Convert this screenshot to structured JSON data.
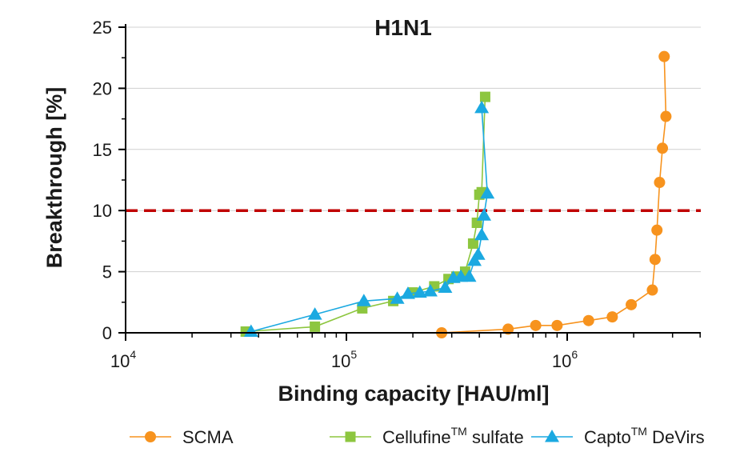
{
  "chart_data": {
    "type": "line",
    "title": "H1N1",
    "xlabel": "Binding capacity [HAU/ml]",
    "ylabel": "Breakthrough [%]",
    "x_scale": "log",
    "xlim": [
      10000,
      4500000
    ],
    "ylim": [
      0,
      25
    ],
    "x_ticks": [
      {
        "base": "10",
        "exp": "4",
        "value": 10000
      },
      {
        "base": "10",
        "exp": "5",
        "value": 100000
      },
      {
        "base": "10",
        "exp": "6",
        "value": 1000000
      }
    ],
    "y_ticks": [
      "0",
      "5",
      "10",
      "15",
      "20",
      "25"
    ],
    "grid": "horizontal",
    "legend_position": "bottom",
    "threshold": {
      "y": 10,
      "color": "#c00000",
      "style": "dashed"
    },
    "series": [
      {
        "name": "SCMA",
        "color": "#f7931e",
        "marker": "circle",
        "x": [
          270000,
          540000,
          720000,
          900000,
          1250000,
          1600000,
          1950000,
          2430000,
          2500000,
          2550000,
          2620000,
          2700000,
          2800000,
          2750000
        ],
        "y": [
          0.0,
          0.3,
          0.6,
          0.6,
          1.0,
          1.3,
          2.3,
          3.5,
          6.0,
          8.4,
          12.3,
          15.1,
          17.7,
          22.6
        ]
      },
      {
        "name": "Cellufine sulfate",
        "name_main": "Cellufine",
        "name_sup": "TM",
        "name_tail": " sulfate",
        "color": "#8dc63f",
        "marker": "square",
        "x": [
          35000,
          72000,
          118000,
          163000,
          200000,
          250000,
          290000,
          315000,
          345000,
          375000,
          390000,
          400000,
          410000,
          425000
        ],
        "y": [
          0.1,
          0.5,
          2.0,
          2.6,
          3.3,
          3.8,
          4.4,
          4.6,
          5.0,
          7.3,
          9.0,
          11.3,
          11.5,
          19.3
        ]
      },
      {
        "name": "Capto DeVirs",
        "name_main": "Capto",
        "name_sup": "TM",
        "name_tail": " DeVirs",
        "color": "#1ba9e1",
        "marker": "triangle",
        "x": [
          37000,
          72000,
          120000,
          170000,
          190000,
          215000,
          240000,
          280000,
          305000,
          330000,
          360000,
          380000,
          395000,
          410000,
          420000,
          435000,
          410000
        ],
        "y": [
          0.1,
          1.5,
          2.6,
          2.8,
          3.2,
          3.3,
          3.4,
          3.7,
          4.5,
          4.6,
          4.6,
          5.9,
          6.4,
          8.0,
          9.6,
          11.4,
          18.4
        ]
      }
    ]
  }
}
